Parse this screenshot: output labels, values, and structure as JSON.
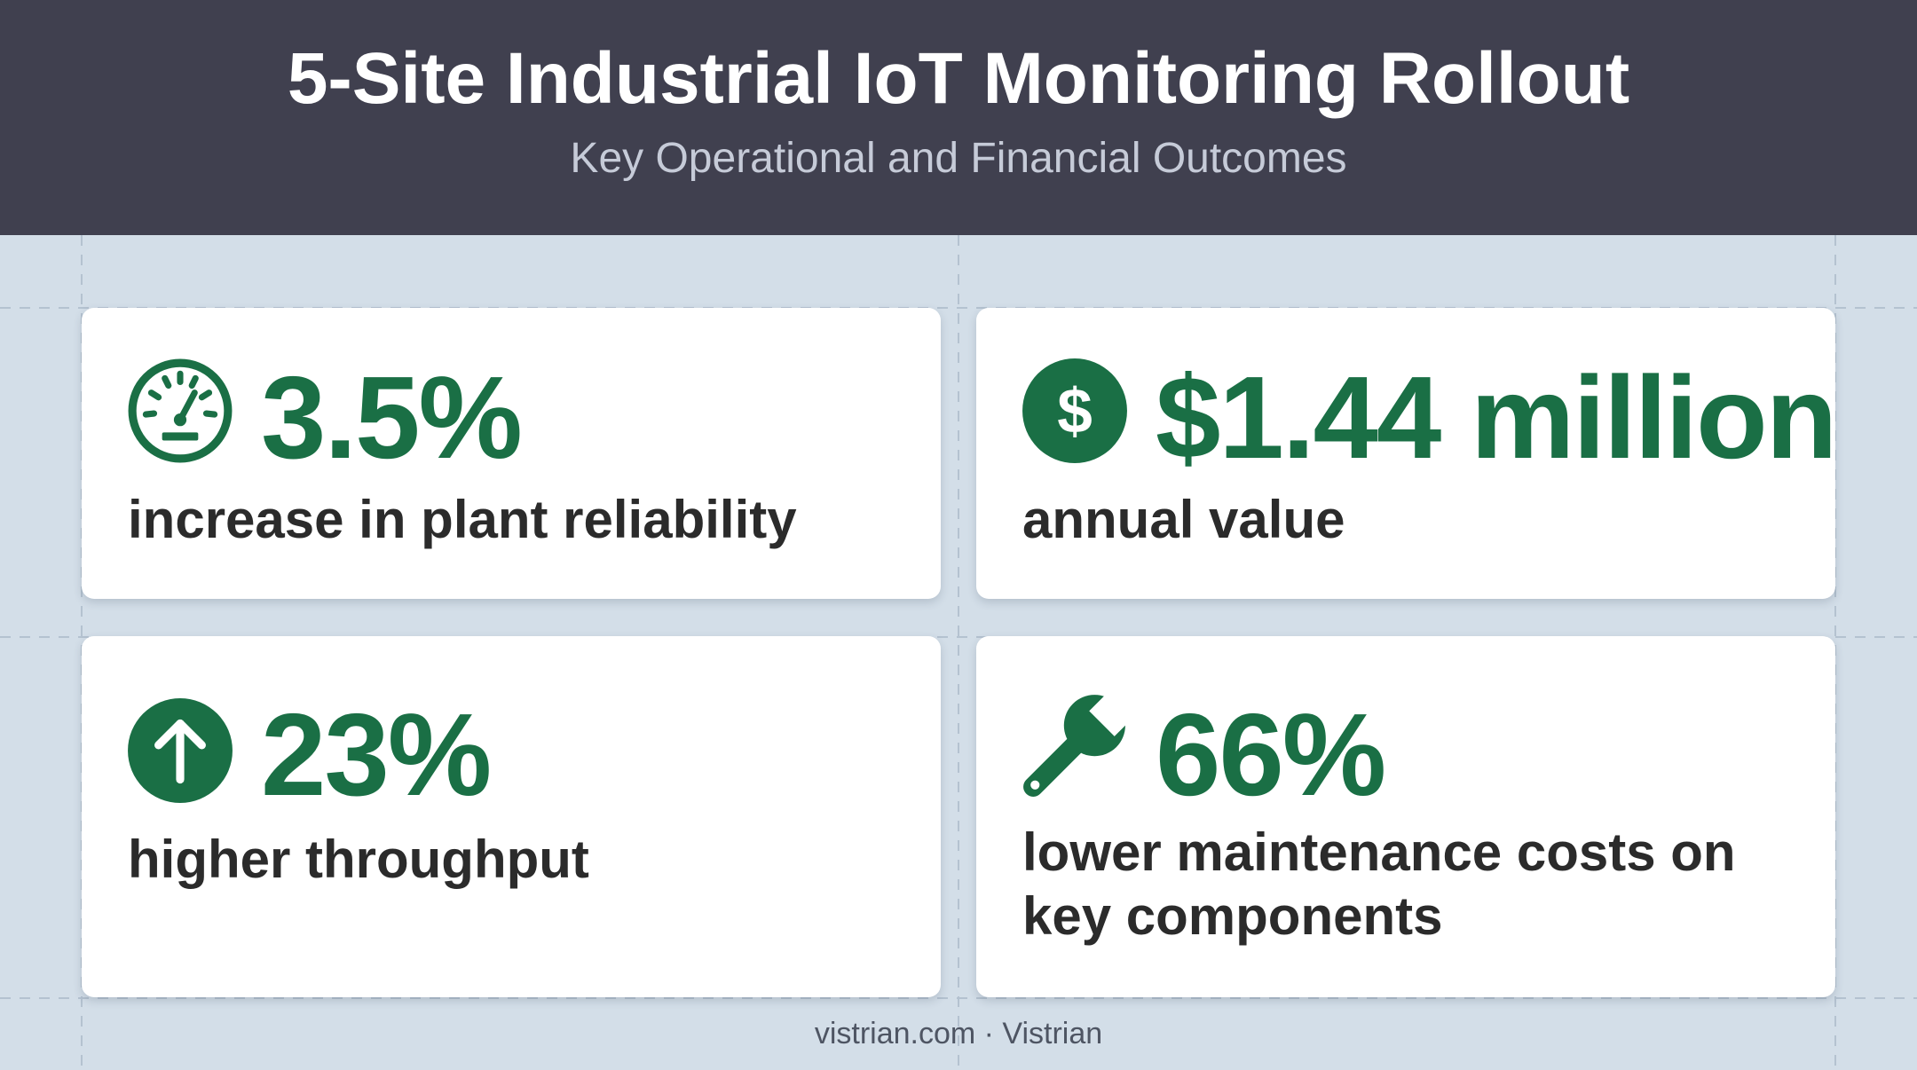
{
  "header": {
    "title": "5-Site Industrial IoT Monitoring Rollout",
    "subtitle": "Key Operational and Financial Outcomes"
  },
  "accent_color": "#1a6f45",
  "header_color": "#40404f",
  "background_color": "#d3dee8",
  "cards": [
    {
      "icon": "speedometer-icon",
      "value": "3.5%",
      "label": "increase in plant reliability"
    },
    {
      "icon": "dollar-circle-icon",
      "value": "$1.44 million",
      "label": "annual value"
    },
    {
      "icon": "arrow-up-circle-icon",
      "value": "23%",
      "label": "higher throughput"
    },
    {
      "icon": "wrench-icon",
      "value": "66%",
      "label": "lower maintenance costs on key components"
    }
  ],
  "footer": {
    "text": "vistrian.com · Vistrian"
  }
}
